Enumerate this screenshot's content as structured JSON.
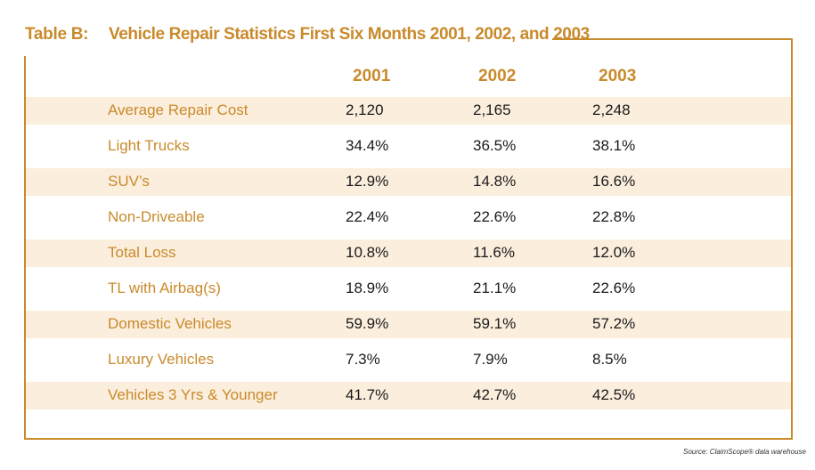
{
  "table": {
    "label": "Table B:",
    "title": "Vehicle Repair Statistics First Six Months 2001, 2002, and 2003",
    "years": [
      "2001",
      "2002",
      "2003"
    ],
    "rows": [
      {
        "label": "Average Repair Cost",
        "values": [
          "2,120",
          "2,165",
          "2,248"
        ]
      },
      {
        "label": "Light Trucks",
        "values": [
          "34.4%",
          "36.5%",
          "38.1%"
        ]
      },
      {
        "label": "SUV’s",
        "values": [
          "12.9%",
          "14.8%",
          "16.6%"
        ]
      },
      {
        "label": "Non-Driveable",
        "values": [
          "22.4%",
          "22.6%",
          "22.8%"
        ]
      },
      {
        "label": "Total Loss",
        "values": [
          "10.8%",
          "11.6%",
          "12.0%"
        ]
      },
      {
        "label": "TL with Airbag(s)",
        "values": [
          "18.9%",
          "21.1%",
          "22.6%"
        ]
      },
      {
        "label": "Domestic Vehicles",
        "values": [
          "59.9%",
          "59.1%",
          "57.2%"
        ]
      },
      {
        "label": "Luxury Vehicles",
        "values": [
          "7.3%",
          "7.9%",
          "8.5%"
        ]
      },
      {
        "label": "Vehicles 3 Yrs & Younger",
        "values": [
          "41.7%",
          "42.7%",
          "42.5%"
        ]
      }
    ],
    "source": "Source: ClaimScope® data warehouse"
  },
  "colors": {
    "accent": "#c98a2b",
    "row_shade": "#fbeedd",
    "value_text": "#1a1a1a"
  }
}
